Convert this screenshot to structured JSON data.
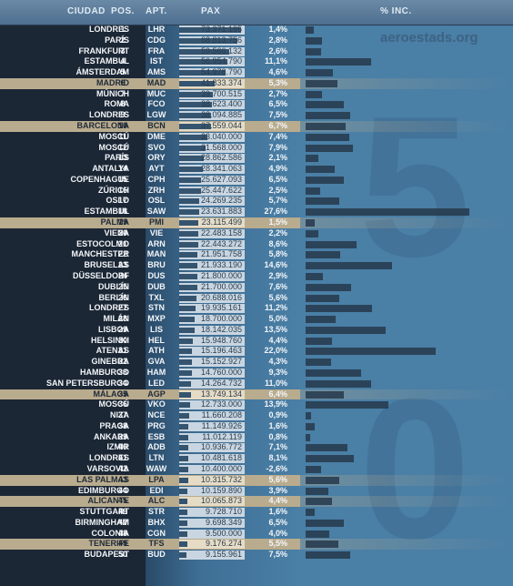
{
  "header": {
    "ciudad": "CIUDAD",
    "pos": "POS.",
    "apt": "APT.",
    "pax": "PAX",
    "inc": "% INC."
  },
  "watermark": "aeroestads.org",
  "big_digits": [
    "5",
    "0"
  ],
  "max_pax": 73371195,
  "max_inc": 27.6,
  "rows": [
    {
      "city": "LONDRES",
      "pos": "1",
      "apt": "LHR",
      "pax": "73.371.195",
      "paxv": 73371195,
      "pct": "1,4%",
      "inc": 1.4,
      "hl": false
    },
    {
      "city": "PARÍS",
      "pos": "2",
      "apt": "CDG",
      "pax": "68.813.756",
      "paxv": 68813756,
      "pct": "2,8%",
      "inc": 2.8,
      "hl": false
    },
    {
      "city": "FRANKFURT",
      "pos": "3",
      "apt": "FRA",
      "pax": "59.566.132",
      "paxv": 59566132,
      "pct": "2,6%",
      "inc": 2.6,
      "hl": false
    },
    {
      "city": "ESTAMBUL",
      "pos": "4",
      "apt": "IST",
      "pax": "56.954.790",
      "paxv": 56954790,
      "pct": "11,1%",
      "inc": 11.1,
      "hl": false
    },
    {
      "city": "ÁMSTERDAM",
      "pos": "5",
      "apt": "AMS",
      "pax": "54.978.790",
      "paxv": 54978790,
      "pct": "4,6%",
      "inc": 4.6,
      "hl": false
    },
    {
      "city": "MADRID",
      "pos": "6",
      "apt": "MAD",
      "pax": "41.833.374",
      "paxv": 41833374,
      "pct": "5,3%",
      "inc": 5.3,
      "hl": true
    },
    {
      "city": "MÚNICH",
      "pos": "7",
      "apt": "MUC",
      "pax": "39.700.515",
      "paxv": 39700515,
      "pct": "2,7%",
      "inc": 2.7,
      "hl": false
    },
    {
      "city": "ROMA",
      "pos": "8",
      "apt": "FCO",
      "pax": "38.623.400",
      "paxv": 38623400,
      "pct": "6,5%",
      "inc": 6.5,
      "hl": false
    },
    {
      "city": "LONDRES",
      "pos": "9",
      "apt": "LGW",
      "pax": "38.094.885",
      "paxv": 38094885,
      "pct": "7,5%",
      "inc": 7.5,
      "hl": false
    },
    {
      "city": "BARCELONA",
      "pos": "10",
      "apt": "BCN",
      "pax": "37.559.044",
      "paxv": 37559044,
      "pct": "6,7%",
      "inc": 6.7,
      "hl": true
    },
    {
      "city": "MOSCÚ",
      "pos": "11",
      "apt": "DME",
      "pax": "33.040.000",
      "paxv": 33040000,
      "pct": "7,4%",
      "inc": 7.4,
      "hl": false
    },
    {
      "city": "MOSCÚ",
      "pos": "12",
      "apt": "SVO",
      "pax": "31.568.000",
      "paxv": 31568000,
      "pct": "7,9%",
      "inc": 7.9,
      "hl": false
    },
    {
      "city": "PARÍS",
      "pos": "13",
      "apt": "ORY",
      "pax": "28.862.586",
      "paxv": 28862586,
      "pct": "2,1%",
      "inc": 2.1,
      "hl": false
    },
    {
      "city": "ANTALYA",
      "pos": "14",
      "apt": "AYT",
      "pax": "28.341.063",
      "paxv": 28341063,
      "pct": "4,9%",
      "inc": 4.9,
      "hl": false
    },
    {
      "city": "COPENHAGUE",
      "pos": "15",
      "apt": "CPH",
      "pax": "25.627.093",
      "paxv": 25627093,
      "pct": "6,5%",
      "inc": 6.5,
      "hl": false
    },
    {
      "city": "ZÚRICH",
      "pos": "16",
      "apt": "ZRH",
      "pax": "25.447.622",
      "paxv": 25447622,
      "pct": "2,5%",
      "inc": 2.5,
      "hl": false
    },
    {
      "city": "OSLO",
      "pos": "17",
      "apt": "OSL",
      "pax": "24.269.235",
      "paxv": 24269235,
      "pct": "5,7%",
      "inc": 5.7,
      "hl": false
    },
    {
      "city": "ESTAMBUL",
      "pos": "18",
      "apt": "SAW",
      "pax": "23.631.883",
      "paxv": 23631883,
      "pct": "27,6%",
      "inc": 27.6,
      "hl": false
    },
    {
      "city": "PALMA",
      "pos": "19",
      "apt": "PMI",
      "pax": "23.115.499",
      "paxv": 23115499,
      "pct": "1,5%",
      "inc": 1.5,
      "hl": true
    },
    {
      "city": "VIENA",
      "pos": "20",
      "apt": "VIE",
      "pax": "22.483.158",
      "paxv": 22483158,
      "pct": "2,2%",
      "inc": 2.2,
      "hl": false
    },
    {
      "city": "ESTOCOLMO",
      "pos": "21",
      "apt": "ARN",
      "pax": "22.443.272",
      "paxv": 22443272,
      "pct": "8,6%",
      "inc": 8.6,
      "hl": false
    },
    {
      "city": "MANCHESTER",
      "pos": "22",
      "apt": "MAN",
      "pax": "21.951.758",
      "paxv": 21951758,
      "pct": "5,8%",
      "inc": 5.8,
      "hl": false
    },
    {
      "city": "BRUSELAS",
      "pos": "23",
      "apt": "BRU",
      "pax": "21.933.190",
      "paxv": 21933190,
      "pct": "14,6%",
      "inc": 14.6,
      "hl": false
    },
    {
      "city": "DÜSSELDORF",
      "pos": "24",
      "apt": "DUS",
      "pax": "21.800.000",
      "paxv": 21800000,
      "pct": "2,9%",
      "inc": 2.9,
      "hl": false
    },
    {
      "city": "DUBLÍN",
      "pos": "25",
      "apt": "DUB",
      "pax": "21.700.000",
      "paxv": 21700000,
      "pct": "7,6%",
      "inc": 7.6,
      "hl": false
    },
    {
      "city": "BERLÍN",
      "pos": "26",
      "apt": "TXL",
      "pax": "20.688.016",
      "paxv": 20688016,
      "pct": "5,6%",
      "inc": 5.6,
      "hl": false
    },
    {
      "city": "LONDRES",
      "pos": "27",
      "apt": "STN",
      "pax": "19.935.161",
      "paxv": 19935161,
      "pct": "11,2%",
      "inc": 11.2,
      "hl": false
    },
    {
      "city": "MILÁN",
      "pos": "28",
      "apt": "MXP",
      "pax": "18.700.000",
      "paxv": 18700000,
      "pct": "5,0%",
      "inc": 5.0,
      "hl": false
    },
    {
      "city": "LISBOA",
      "pos": "29",
      "apt": "LIS",
      "pax": "18.142.035",
      "paxv": 18142035,
      "pct": "13,5%",
      "inc": 13.5,
      "hl": false
    },
    {
      "city": "HELSINKI",
      "pos": "30",
      "apt": "HEL",
      "pax": "15.948.760",
      "paxv": 15948760,
      "pct": "4,4%",
      "inc": 4.4,
      "hl": false
    },
    {
      "city": "ATENAS",
      "pos": "31",
      "apt": "ATH",
      "pax": "15.196.463",
      "paxv": 15196463,
      "pct": "22,0%",
      "inc": 22.0,
      "hl": false
    },
    {
      "city": "GINEBRA",
      "pos": "32",
      "apt": "GVA",
      "pax": "15.152.927",
      "paxv": 15152927,
      "pct": "4,3%",
      "inc": 4.3,
      "hl": false
    },
    {
      "city": "HAMBURGO",
      "pos": "33",
      "apt": "HAM",
      "pax": "14.760.000",
      "paxv": 14760000,
      "pct": "9,3%",
      "inc": 9.3,
      "hl": false
    },
    {
      "city": "SAN PETERSBURGO",
      "pos": "34",
      "apt": "LED",
      "pax": "14.264.732",
      "paxv": 14264732,
      "pct": "11,0%",
      "inc": 11.0,
      "hl": false
    },
    {
      "city": "MÁLAGA",
      "pos": "35",
      "apt": "AGP",
      "pax": "13.749.134",
      "paxv": 13749134,
      "pct": "6,4%",
      "inc": 6.4,
      "hl": true
    },
    {
      "city": "MOSCÚ",
      "pos": "36",
      "apt": "VKO",
      "pax": "12.733.000",
      "paxv": 12733000,
      "pct": "13,9%",
      "inc": 13.9,
      "hl": false
    },
    {
      "city": "NIZA",
      "pos": "37",
      "apt": "NCE",
      "pax": "11.660.208",
      "paxv": 11660208,
      "pct": "0,9%",
      "inc": 0.9,
      "hl": false
    },
    {
      "city": "PRAGA",
      "pos": "38",
      "apt": "PRG",
      "pax": "11.149.926",
      "paxv": 11149926,
      "pct": "1,6%",
      "inc": 1.6,
      "hl": false
    },
    {
      "city": "ANKARA",
      "pos": "39",
      "apt": "ESB",
      "pax": "11.012.119",
      "paxv": 11012119,
      "pct": "0,8%",
      "inc": 0.8,
      "hl": false
    },
    {
      "city": "IZMIR",
      "pos": "40",
      "apt": "ADB",
      "pax": "10.936.772",
      "paxv": 10936772,
      "pct": "7,1%",
      "inc": 7.1,
      "hl": false
    },
    {
      "city": "LONDRES",
      "pos": "41",
      "apt": "LTN",
      "pax": "10.481.618",
      "paxv": 10481618,
      "pct": "8,1%",
      "inc": 8.1,
      "hl": false
    },
    {
      "city": "VARSOVIA",
      "pos": "42",
      "apt": "WAW",
      "pax": "10.400.000",
      "paxv": 10400000,
      "pct": "-2,6%",
      "inc": -2.6,
      "hl": false
    },
    {
      "city": "LAS PALMAS",
      "pos": "43",
      "apt": "LPA",
      "pax": "10.315.732",
      "paxv": 10315732,
      "pct": "5,6%",
      "inc": 5.6,
      "hl": true
    },
    {
      "city": "EDIMBURGO",
      "pos": "44",
      "apt": "EDI",
      "pax": "10.159.890",
      "paxv": 10159890,
      "pct": "3,9%",
      "inc": 3.9,
      "hl": false
    },
    {
      "city": "ALICANTE",
      "pos": "45",
      "apt": "ALC",
      "pax": "10.065.873",
      "paxv": 10065873,
      "pct": "4,4%",
      "inc": 4.4,
      "hl": true
    },
    {
      "city": "STUTTGART",
      "pos": "46",
      "apt": "STR",
      "pax": "9.728.710",
      "paxv": 9728710,
      "pct": "1,6%",
      "inc": 1.6,
      "hl": false
    },
    {
      "city": "BIRMINGHAM",
      "pos": "47",
      "apt": "BHX",
      "pax": "9.698.349",
      "paxv": 9698349,
      "pct": "6,5%",
      "inc": 6.5,
      "hl": false
    },
    {
      "city": "COLONIA",
      "pos": "48",
      "apt": "CGN",
      "pax": "9.500.000",
      "paxv": 9500000,
      "pct": "4,0%",
      "inc": 4.0,
      "hl": false
    },
    {
      "city": "TENERIFE",
      "pos": "49",
      "apt": "TFS",
      "pax": "9.176.274",
      "paxv": 9176274,
      "pct": "5,5%",
      "inc": 5.5,
      "hl": true
    },
    {
      "city": "BUDAPEST",
      "pos": "50",
      "apt": "BUD",
      "pax": "9.155.961",
      "paxv": 9155961,
      "pct": "7,5%",
      "inc": 7.5,
      "hl": false
    }
  ]
}
